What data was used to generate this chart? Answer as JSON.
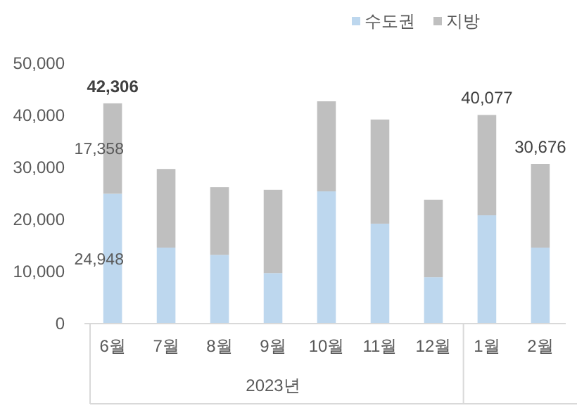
{
  "chart_data": {
    "type": "bar",
    "stacked": true,
    "categories": [
      "6월",
      "7월",
      "8월",
      "9월",
      "10월",
      "11월",
      "12월",
      "1월",
      "2월"
    ],
    "series": [
      {
        "name": "수도권",
        "color": "#bdd7ee",
        "values": [
          24948,
          14600,
          13200,
          9700,
          25400,
          19200,
          8900,
          20800,
          14600
        ],
        "value_labels": [
          "24,948",
          null,
          null,
          null,
          null,
          null,
          null,
          null,
          null
        ]
      },
      {
        "name": "지방",
        "color": "#bfbfbf",
        "values": [
          17358,
          15100,
          13000,
          16000,
          17300,
          20000,
          14900,
          19277,
          16076
        ],
        "value_labels": [
          "17,358",
          null,
          null,
          null,
          null,
          null,
          null,
          null,
          null
        ]
      }
    ],
    "totals": [
      "42,306",
      null,
      null,
      null,
      null,
      null,
      null,
      "40,077",
      "30,676"
    ],
    "annotations": [
      "2023년"
    ],
    "ylim": [
      0,
      50000
    ],
    "yticks": [
      {
        "value": 0,
        "label": "0"
      },
      {
        "value": 10000,
        "label": "10,000"
      },
      {
        "value": 20000,
        "label": "20,000"
      },
      {
        "value": 30000,
        "label": "30,000"
      },
      {
        "value": 40000,
        "label": "40,000"
      },
      {
        "value": 50000,
        "label": "50,000"
      }
    ],
    "grid": false,
    "legend": "top right"
  }
}
